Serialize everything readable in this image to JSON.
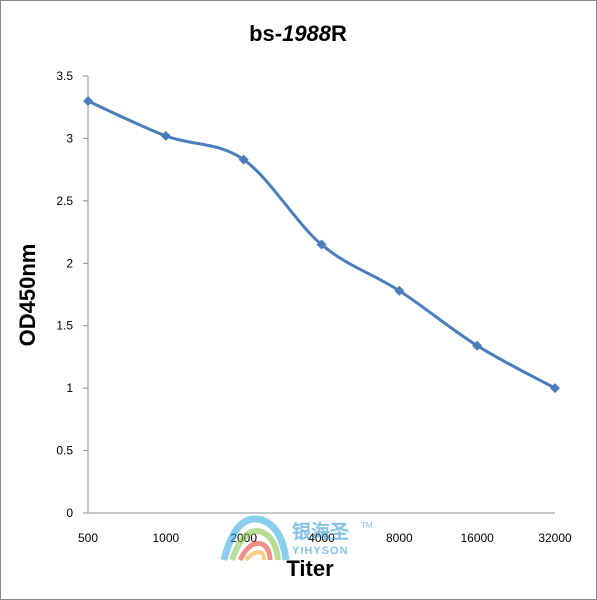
{
  "chart_data": {
    "type": "line",
    "title_prefix": "bs-",
    "title_number": "1988",
    "title_suffix": "R",
    "xlabel": "Titer",
    "ylabel": "OD450nm",
    "categories": [
      "500",
      "1000",
      "2000",
      "4000",
      "8000",
      "16000",
      "32000"
    ],
    "series": [
      {
        "values": [
          3.3,
          3.02,
          2.83,
          2.15,
          1.78,
          1.34,
          1.0
        ]
      }
    ],
    "ylim": [
      0,
      3.5
    ],
    "yticks": [
      "0",
      "0.5",
      "1",
      "1.5",
      "2",
      "2.5",
      "3",
      "3.5"
    ],
    "grid": false,
    "legend": "none",
    "line_color": "#4a7ebb",
    "axis_color": "#8c8c8c"
  },
  "watermark": {
    "cn_text": "银海圣",
    "en_text": "YIHYSON",
    "tm": "TM"
  }
}
